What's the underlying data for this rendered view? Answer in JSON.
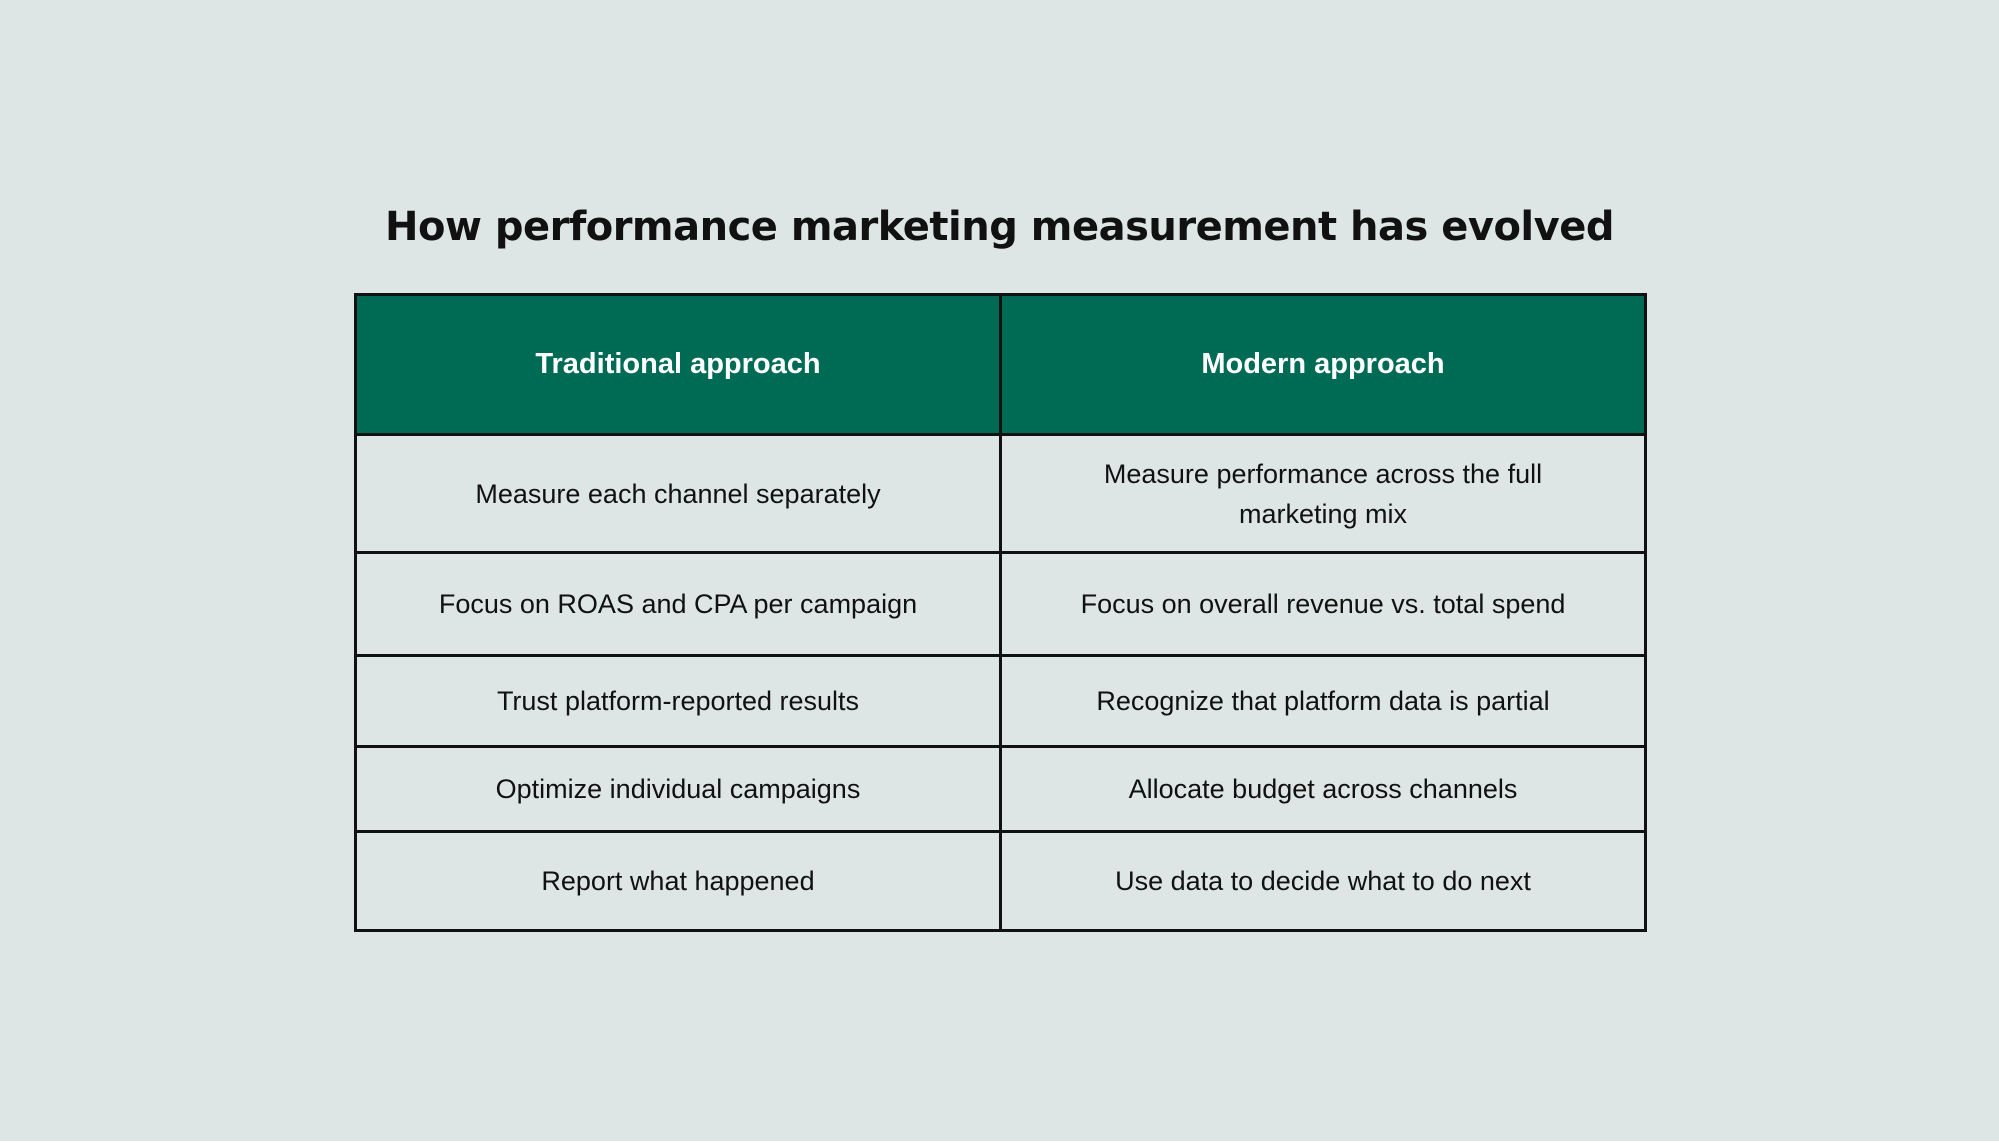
{
  "title": "How performance marketing measurement has evolved",
  "table": {
    "headers": [
      "Traditional approach",
      "Modern approach"
    ],
    "rows": [
      [
        "Measure each channel separately",
        "Measure performance across the full marketing mix"
      ],
      [
        "Focus on ROAS and CPA per campaign",
        "Focus on overall revenue vs. total spend"
      ],
      [
        "Trust platform-reported results",
        "Recognize that platform data is partial"
      ],
      [
        "Optimize individual campaigns",
        "Allocate budget across channels"
      ],
      [
        "Report what happened",
        "Use data to decide what to do next"
      ]
    ]
  },
  "colors": {
    "background": "#dde6e4",
    "header_fill": "#006b55",
    "header_text": "#ffffff",
    "border": "#111111",
    "text": "#111111"
  }
}
